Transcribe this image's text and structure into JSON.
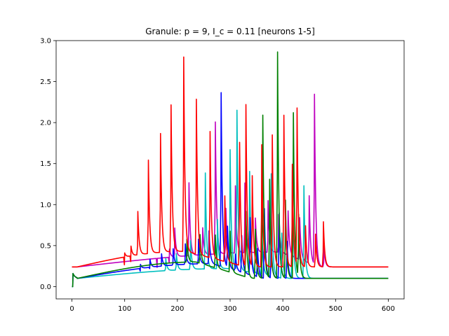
{
  "chart_data": {
    "type": "line",
    "title": "Granule: p = 9, I_c = 0.11 [neurons 1-5]",
    "xlabel": "",
    "ylabel": "",
    "xlim": [
      -30,
      630
    ],
    "ylim": [
      -0.15,
      3.0
    ],
    "x_ticks": [
      0,
      100,
      200,
      300,
      400,
      500,
      600
    ],
    "y_ticks": [
      0.0,
      0.5,
      1.0,
      1.5,
      2.0,
      2.5,
      3.0
    ],
    "x_tick_labels": [
      "0",
      "100",
      "200",
      "300",
      "400",
      "500",
      "600"
    ],
    "y_tick_labels": [
      "0.0",
      "0.5",
      "1.0",
      "1.5",
      "2.0",
      "2.5",
      "3.0"
    ],
    "grid": false,
    "legend": "none",
    "baseline_low": 0.1,
    "baseline_high": 0.24,
    "series": [
      {
        "color": "#ff0000",
        "spike_times": [
          100,
          112,
          125,
          145,
          168,
          188,
          212,
          236,
          262,
          290,
          318,
          330,
          342,
          360,
          380,
          402,
          418,
          427,
          443,
          462,
          477
        ],
        "spike_peaks": [
          0.15,
          0.22,
          0.63,
          1.24,
          1.55,
          1.89,
          2.47,
          1.99,
          1.64,
          0.9,
          1.6,
          2.07,
          1.2,
          1.59,
          1.71,
          1.95,
          1.35,
          2.01,
          0.6,
          0.5,
          0.65
        ]
      },
      {
        "color": "#008000",
        "spike_times": [
          218,
          243,
          272,
          300,
          330,
          348,
          362,
          375,
          390,
          405,
          420,
          430
        ],
        "spike_peaks": [
          0.38,
          0.45,
          0.5,
          0.6,
          0.9,
          0.7,
          2.09,
          1.3,
          2.86,
          1.05,
          2.12,
          0.85
        ]
      },
      {
        "color": "#0000ff",
        "spike_times": [
          130,
          148,
          170,
          192,
          215,
          240,
          260,
          283,
          295,
          310,
          322,
          338,
          352,
          365,
          378,
          393,
          408
        ],
        "spike_peaks": [
          0.15,
          0.2,
          0.25,
          0.3,
          0.35,
          0.4,
          0.5,
          2.22,
          0.6,
          0.3,
          0.55,
          0.8,
          0.45,
          0.95,
          0.5,
          0.9,
          0.55
        ]
      },
      {
        "color": "#00bfbf",
        "spike_times": [
          178,
          198,
          225,
          253,
          276,
          300,
          313,
          337,
          360,
          378,
          398,
          418,
          440
        ],
        "spike_peaks": [
          0.25,
          0.3,
          0.45,
          1.27,
          0.7,
          1.55,
          2.04,
          1.33,
          0.7,
          1.35,
          0.65,
          1.42,
          1.23
        ]
      },
      {
        "color": "#bf00bf",
        "spike_times": [
          162,
          185,
          195,
          222,
          248,
          272,
          292,
          310,
          328,
          348,
          372,
          392,
          410,
          432,
          450,
          460,
          478
        ],
        "spike_peaks": [
          0.1,
          0.2,
          0.45,
          0.99,
          0.43,
          1.71,
          0.65,
          0.92,
          0.95,
          0.52,
          0.73,
          0.56,
          0.64,
          0.61,
          0.92,
          2.17,
          0.35
        ]
      }
    ]
  }
}
